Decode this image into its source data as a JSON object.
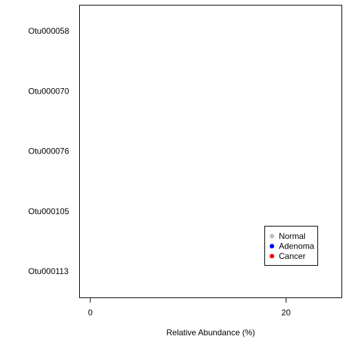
{
  "chart_data": {
    "type": "scatter",
    "title": "",
    "xlabel": "Relative Abundance (%)",
    "ylabel": "",
    "xlim": [
      -1.1,
      25.7
    ],
    "x_ticks": [
      0,
      20
    ],
    "categories": [
      "Otu000058",
      "Otu000070",
      "Otu000076",
      "Otu000105",
      "Otu000113"
    ],
    "grid": false,
    "legend_position": "bottom-right",
    "series": [
      {
        "name": "Normal",
        "color": "#bebebe",
        "points": []
      },
      {
        "name": "Adenoma",
        "color": "#0000ff",
        "points": []
      },
      {
        "name": "Cancer",
        "color": "#ff0000",
        "points": []
      }
    ]
  }
}
